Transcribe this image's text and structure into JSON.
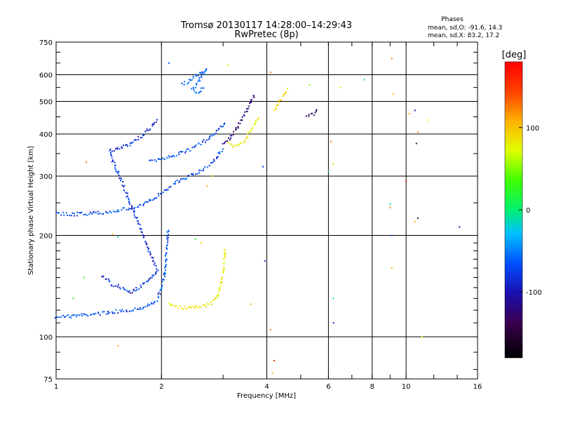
{
  "chart_data": {
    "type": "scatter",
    "title": "Tromsø 20130117 14:28:00–14:29:43",
    "subtitle": "RwPretec (8p)",
    "xlabel": "Frequency [MHz]",
    "ylabel": "Stationary phase Virtual Height [km]",
    "x_scale": "log",
    "y_scale": "log",
    "xlim": [
      1,
      16
    ],
    "ylim": [
      75,
      750
    ],
    "x_ticks": [
      1,
      2,
      4,
      6,
      8,
      10,
      16
    ],
    "x_ticklabels": [
      "1",
      "2",
      "4",
      "6",
      "8",
      "10",
      "16"
    ],
    "y_ticks": [
      75,
      100,
      200,
      300,
      400,
      500,
      600,
      750
    ],
    "y_ticklabels": [
      "75",
      "100",
      "200",
      "300",
      "400",
      "500",
      "600",
      "750"
    ],
    "grid": true,
    "legend": {
      "title": "Phases",
      "line1": "mean, sd,O:  -91.6, 14.3",
      "line2": "mean, sd,X:  83.2, 17.2",
      "placement": "top-right"
    },
    "colorbar": {
      "label": "[deg]",
      "range": [
        -180,
        180
      ],
      "ticks": [
        100,
        0,
        -100
      ],
      "ticklabels": [
        "100",
        "0",
        "-100"
      ]
    },
    "traces": [
      {
        "phase": -100,
        "points": [
          [
            1.0,
            115
          ],
          [
            1.1,
            115
          ],
          [
            1.2,
            116
          ],
          [
            1.3,
            117
          ],
          [
            1.4,
            118
          ],
          [
            1.5,
            119
          ],
          [
            1.6,
            120
          ],
          [
            1.7,
            121
          ],
          [
            1.8,
            123
          ],
          [
            1.9,
            126
          ],
          [
            1.95,
            130
          ],
          [
            2.0,
            138
          ],
          [
            2.03,
            148
          ],
          [
            2.05,
            160
          ],
          [
            2.06,
            172
          ],
          [
            2.07,
            185
          ],
          [
            2.08,
            198
          ],
          [
            2.09,
            210
          ]
        ]
      },
      {
        "phase": -100,
        "points": [
          [
            1.0,
            232
          ],
          [
            1.1,
            231
          ],
          [
            1.2,
            232
          ],
          [
            1.3,
            233
          ],
          [
            1.4,
            235
          ],
          [
            1.5,
            237
          ],
          [
            1.6,
            240
          ],
          [
            1.7,
            243
          ],
          [
            1.8,
            248
          ],
          [
            1.9,
            258
          ],
          [
            2.0,
            268
          ],
          [
            2.1,
            278
          ],
          [
            2.2,
            287
          ],
          [
            2.3,
            294
          ],
          [
            2.4,
            300
          ],
          [
            2.5,
            306
          ],
          [
            2.6,
            312
          ],
          [
            2.7,
            320
          ],
          [
            2.8,
            330
          ],
          [
            2.9,
            345
          ],
          [
            3.0,
            362
          ]
        ]
      },
      {
        "phase": -100,
        "points": [
          [
            1.85,
            330
          ],
          [
            1.95,
            335
          ],
          [
            2.05,
            340
          ],
          [
            2.15,
            345
          ],
          [
            2.25,
            350
          ],
          [
            2.35,
            356
          ],
          [
            2.45,
            362
          ],
          [
            2.55,
            370
          ],
          [
            2.65,
            380
          ],
          [
            2.75,
            392
          ],
          [
            2.85,
            405
          ],
          [
            2.95,
            418
          ],
          [
            3.05,
            432
          ]
        ]
      },
      {
        "phase": -90,
        "points": [
          [
            2.3,
            560
          ],
          [
            2.4,
            575
          ],
          [
            2.5,
            590
          ],
          [
            2.6,
            610
          ],
          [
            2.7,
            625
          ],
          [
            2.45,
            540
          ],
          [
            2.55,
            530
          ],
          [
            2.65,
            555
          ]
        ]
      },
      {
        "phase": -110,
        "points": [
          [
            1.35,
            152
          ],
          [
            1.45,
            143
          ],
          [
            1.55,
            140
          ],
          [
            1.65,
            135
          ],
          [
            1.75,
            142
          ],
          [
            1.85,
            148
          ],
          [
            1.95,
            156
          ],
          [
            1.42,
            355
          ],
          [
            1.55,
            365
          ],
          [
            1.65,
            375
          ],
          [
            1.75,
            395
          ],
          [
            1.85,
            415
          ],
          [
            1.95,
            440
          ]
        ]
      },
      {
        "phase": -140,
        "points": [
          [
            3.0,
            370
          ],
          [
            3.1,
            385
          ],
          [
            3.2,
            400
          ],
          [
            3.3,
            420
          ],
          [
            3.4,
            445
          ],
          [
            3.5,
            470
          ],
          [
            3.6,
            500
          ],
          [
            3.7,
            530
          ]
        ]
      },
      {
        "phase": 110,
        "points": [
          [
            2.1,
            125
          ],
          [
            2.2,
            123
          ],
          [
            2.3,
            122
          ],
          [
            2.4,
            122
          ],
          [
            2.5,
            122
          ],
          [
            2.6,
            123
          ],
          [
            2.7,
            124
          ],
          [
            2.8,
            127
          ],
          [
            2.9,
            133
          ],
          [
            2.95,
            142
          ],
          [
            3.0,
            155
          ],
          [
            3.03,
            170
          ],
          [
            3.05,
            185
          ]
        ]
      },
      {
        "phase": 110,
        "points": [
          [
            3.1,
            375
          ],
          [
            3.2,
            370
          ],
          [
            3.3,
            372
          ],
          [
            3.4,
            378
          ],
          [
            3.5,
            390
          ],
          [
            3.6,
            410
          ],
          [
            3.7,
            430
          ],
          [
            3.8,
            455
          ]
        ]
      },
      {
        "phase": 120,
        "points": [
          [
            4.2,
            470
          ],
          [
            4.3,
            490
          ],
          [
            4.4,
            510
          ],
          [
            4.5,
            530
          ],
          [
            4.6,
            545
          ]
        ]
      },
      {
        "phase": -140,
        "points": [
          [
            5.2,
            450
          ],
          [
            5.35,
            455
          ],
          [
            5.5,
            460
          ],
          [
            5.6,
            470
          ]
        ]
      }
    ],
    "scattered_points": [
      {
        "x": 2.1,
        "y": 650,
        "phase": -100
      },
      {
        "x": 3.1,
        "y": 640,
        "phase": 80
      },
      {
        "x": 4.1,
        "y": 610,
        "phase": 150
      },
      {
        "x": 5.3,
        "y": 560,
        "phase": 60
      },
      {
        "x": 6.5,
        "y": 550,
        "phase": 110
      },
      {
        "x": 7.6,
        "y": 580,
        "phase": -10
      },
      {
        "x": 9.1,
        "y": 670,
        "phase": 150
      },
      {
        "x": 9.2,
        "y": 525,
        "phase": 130
      },
      {
        "x": 10.6,
        "y": 470,
        "phase": -120
      },
      {
        "x": 10.2,
        "y": 460,
        "phase": 140
      },
      {
        "x": 11.5,
        "y": 440,
        "phase": 100
      },
      {
        "x": 6.1,
        "y": 380,
        "phase": 150
      },
      {
        "x": 6.0,
        "y": 310,
        "phase": -20
      },
      {
        "x": 6.2,
        "y": 325,
        "phase": 120
      },
      {
        "x": 3.9,
        "y": 320,
        "phase": -110
      },
      {
        "x": 9.0,
        "y": 248,
        "phase": -20
      },
      {
        "x": 9.0,
        "y": 242,
        "phase": 150
      },
      {
        "x": 10.0,
        "y": 290,
        "phase": 170
      },
      {
        "x": 10.8,
        "y": 225,
        "phase": -150
      },
      {
        "x": 10.6,
        "y": 220,
        "phase": 140
      },
      {
        "x": 14.2,
        "y": 212,
        "phase": -120
      },
      {
        "x": 9.1,
        "y": 200,
        "phase": -100
      },
      {
        "x": 9.1,
        "y": 160,
        "phase": 140
      },
      {
        "x": 3.95,
        "y": 168,
        "phase": -120
      },
      {
        "x": 6.2,
        "y": 130,
        "phase": -20
      },
      {
        "x": 6.2,
        "y": 110,
        "phase": -110
      },
      {
        "x": 4.1,
        "y": 105,
        "phase": 150
      },
      {
        "x": 4.2,
        "y": 85,
        "phase": 170
      },
      {
        "x": 4.15,
        "y": 78,
        "phase": 140
      },
      {
        "x": 3.6,
        "y": 125,
        "phase": 140
      },
      {
        "x": 11.1,
        "y": 100,
        "phase": 100
      },
      {
        "x": 1.5,
        "y": 94,
        "phase": 140
      },
      {
        "x": 1.22,
        "y": 330,
        "phase": 150
      },
      {
        "x": 1.2,
        "y": 150,
        "phase": 20
      },
      {
        "x": 1.45,
        "y": 202,
        "phase": 120
      },
      {
        "x": 1.5,
        "y": 198,
        "phase": -20
      },
      {
        "x": 1.12,
        "y": 130,
        "phase": 30
      },
      {
        "x": 2.8,
        "y": 300,
        "phase": 120
      },
      {
        "x": 2.7,
        "y": 280,
        "phase": 140
      },
      {
        "x": 2.5,
        "y": 195,
        "phase": 20
      },
      {
        "x": 2.6,
        "y": 190,
        "phase": 130
      },
      {
        "x": 10.8,
        "y": 405,
        "phase": 150
      },
      {
        "x": 10.7,
        "y": 375,
        "phase": -150
      }
    ]
  }
}
